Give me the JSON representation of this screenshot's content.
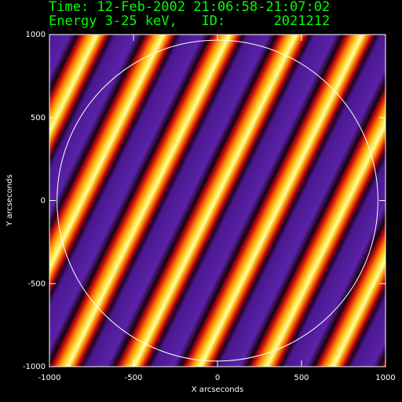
{
  "chart_data": {
    "type": "image",
    "title": [
      "Time: 12-Feb-2002 21:06:58-21:07:02",
      "Energy 3-25 keV,   ID:      2021212"
    ],
    "xlabel": "X arcseconds",
    "ylabel": "Y arcseconds",
    "xlim": [
      -1000,
      1000
    ],
    "ylim": [
      -1000,
      1000
    ],
    "xticks": [
      -1000,
      -500,
      0,
      500,
      1000
    ],
    "yticks": [
      -1000,
      -500,
      0,
      500,
      1000
    ],
    "limb_radius": 955,
    "limb_color": "#ffffff",
    "axis_color": "#ffffff",
    "title_color": "#00ff00"
  }
}
